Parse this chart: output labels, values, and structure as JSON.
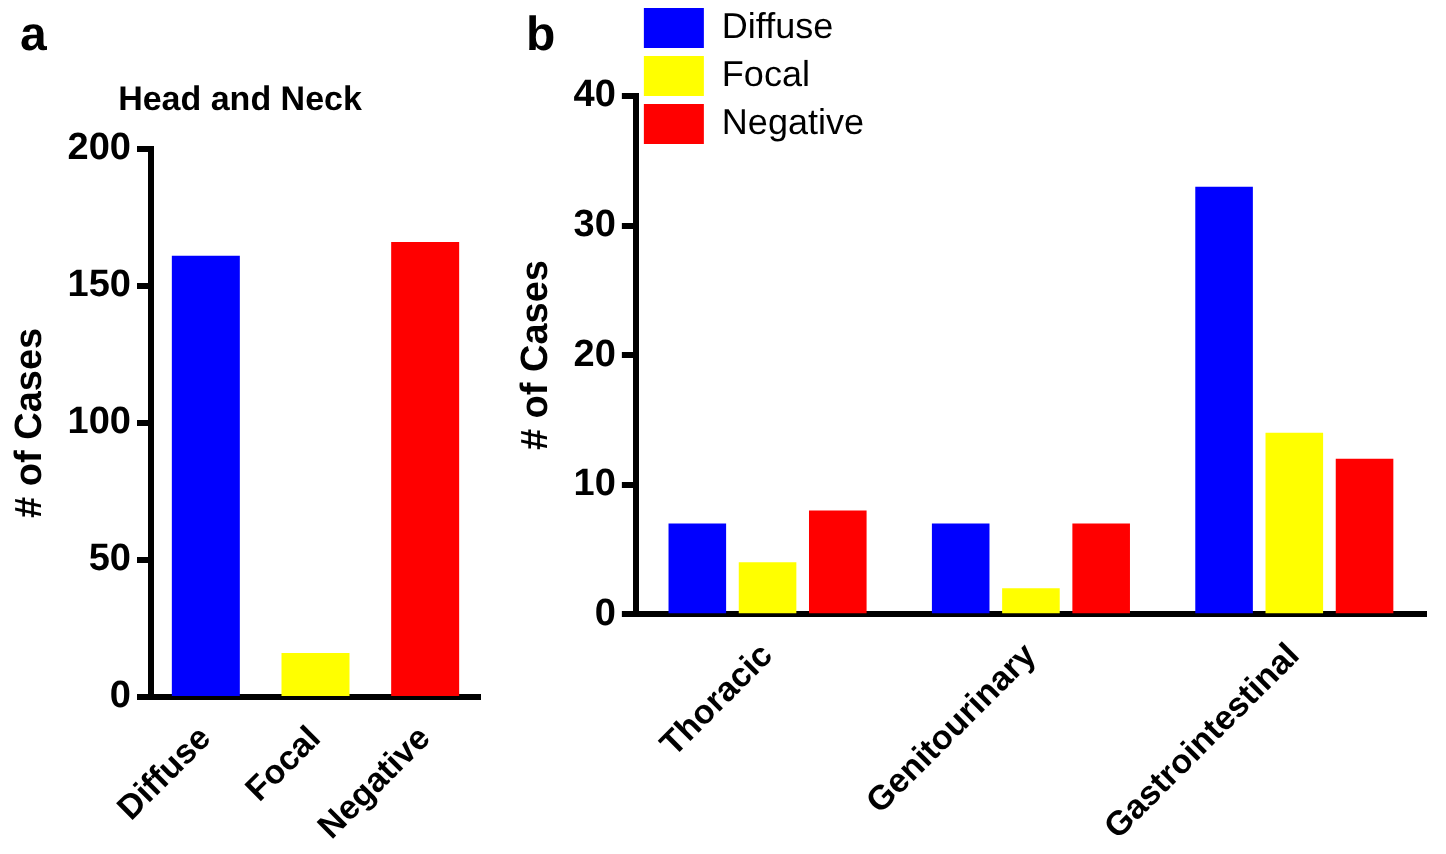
{
  "chart_data": [
    {
      "type": "bar",
      "title": "Head and Neck",
      "annotations": [
        "a"
      ],
      "ylabel": "# of Cases",
      "categories": [
        "Diffuse",
        "Focal",
        "Negative"
      ],
      "values": [
        161,
        16,
        166
      ],
      "colors": [
        "#0000ff",
        "#ffff00",
        "#ff0000"
      ],
      "ylim": [
        0,
        200
      ],
      "yticks": [
        0,
        50,
        100,
        150,
        200
      ],
      "grid": false,
      "legend": false
    },
    {
      "type": "bar",
      "annotations": [
        "b"
      ],
      "ylabel": "# of Cases",
      "categories": [
        "Thoracic",
        "Genitourinary",
        "Gastrointestinal"
      ],
      "series": [
        {
          "name": "Diffuse",
          "color": "#0000ff",
          "values": [
            7,
            7,
            33
          ]
        },
        {
          "name": "Focal",
          "color": "#ffff00",
          "values": [
            4,
            2,
            14
          ]
        },
        {
          "name": "Negative",
          "color": "#ff0000",
          "values": [
            8,
            7,
            12
          ]
        }
      ],
      "ylim": [
        0,
        40
      ],
      "yticks": [
        0,
        10,
        20,
        30,
        40
      ],
      "grid": false,
      "legend": "top left"
    }
  ]
}
